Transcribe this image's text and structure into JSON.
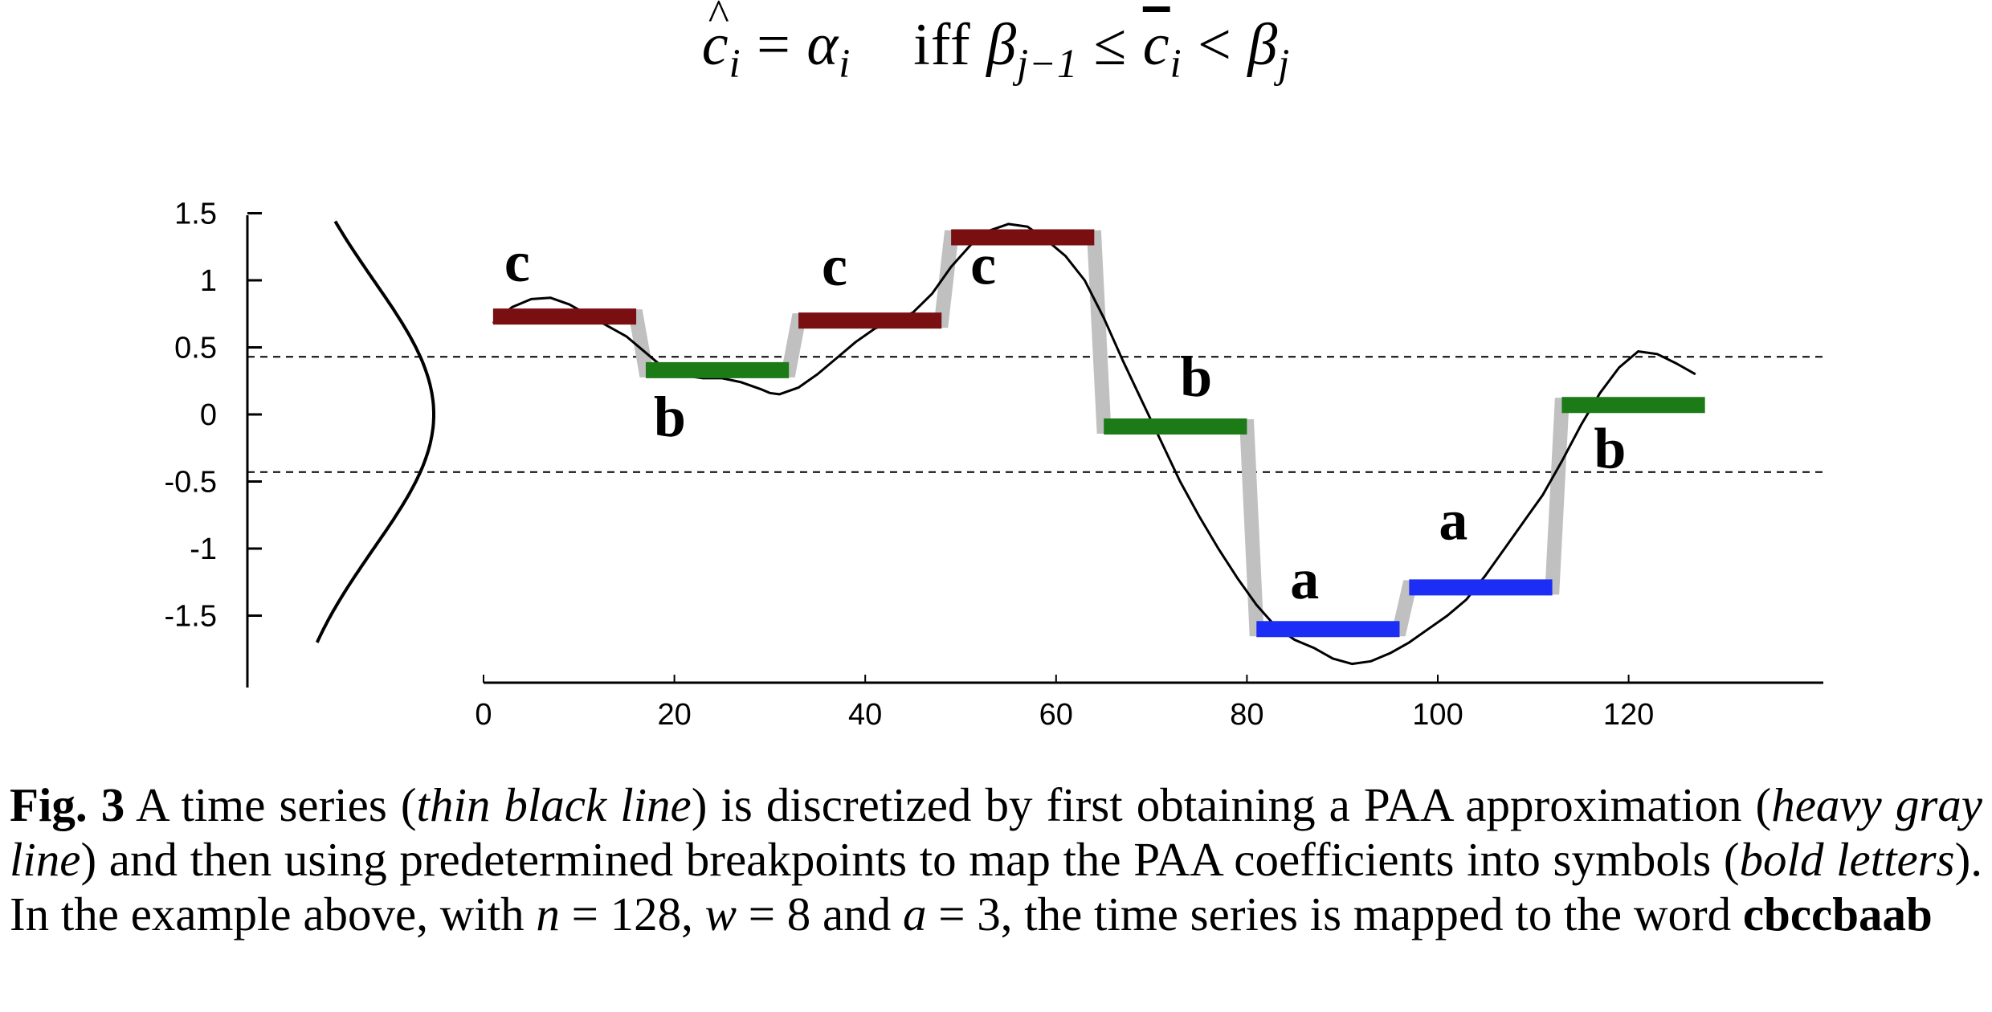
{
  "formula": {
    "c_hat": "c",
    "sub_i": "i",
    "eq": "=",
    "alpha": "α",
    "sub_i2": "i",
    "iff": "iff",
    "beta": "β",
    "sub_jm1": "j−1",
    "leq": "≤",
    "c_bar": "c",
    "sub_i3": "i",
    "lt": "<",
    "beta2": "β",
    "sub_j": "j"
  },
  "chart_data": {
    "type": "line",
    "xlim": [
      0,
      140
    ],
    "ylim": [
      -2,
      1.5
    ],
    "x_ticks": [
      0,
      20,
      40,
      60,
      80,
      100,
      120
    ],
    "y_ticks": [
      1.5,
      1,
      0.5,
      0,
      -0.5,
      -1,
      -1.5
    ],
    "x_tick_labels": [
      "0",
      "20",
      "40",
      "60",
      "80",
      "100",
      "120"
    ],
    "y_tick_labels": [
      "1.5",
      "1",
      "0.5",
      "0",
      "-0.5",
      "-1",
      "-1.5"
    ],
    "breakpoints": [
      0.43,
      -0.43
    ],
    "time_series": [
      [
        1,
        0.68
      ],
      [
        3,
        0.8
      ],
      [
        5,
        0.86
      ],
      [
        7,
        0.87
      ],
      [
        9,
        0.82
      ],
      [
        11,
        0.74
      ],
      [
        13,
        0.66
      ],
      [
        15,
        0.58
      ],
      [
        17,
        0.46
      ],
      [
        19,
        0.34
      ],
      [
        21,
        0.29
      ],
      [
        23,
        0.27
      ],
      [
        25,
        0.27
      ],
      [
        27,
        0.24
      ],
      [
        29,
        0.19
      ],
      [
        30,
        0.16
      ],
      [
        31,
        0.15
      ],
      [
        33,
        0.2
      ],
      [
        35,
        0.3
      ],
      [
        37,
        0.42
      ],
      [
        39,
        0.54
      ],
      [
        41,
        0.64
      ],
      [
        43,
        0.7
      ],
      [
        45,
        0.76
      ],
      [
        47,
        0.9
      ],
      [
        49,
        1.1
      ],
      [
        51,
        1.26
      ],
      [
        53,
        1.37
      ],
      [
        55,
        1.42
      ],
      [
        57,
        1.4
      ],
      [
        59,
        1.3
      ],
      [
        61,
        1.18
      ],
      [
        63,
        1.0
      ],
      [
        65,
        0.72
      ],
      [
        67,
        0.4
      ],
      [
        69,
        0.1
      ],
      [
        71,
        -0.2
      ],
      [
        73,
        -0.5
      ],
      [
        75,
        -0.76
      ],
      [
        77,
        -1.0
      ],
      [
        79,
        -1.22
      ],
      [
        81,
        -1.42
      ],
      [
        83,
        -1.58
      ],
      [
        85,
        -1.68
      ],
      [
        87,
        -1.74
      ],
      [
        89,
        -1.82
      ],
      [
        91,
        -1.86
      ],
      [
        93,
        -1.84
      ],
      [
        95,
        -1.78
      ],
      [
        97,
        -1.7
      ],
      [
        99,
        -1.6
      ],
      [
        101,
        -1.5
      ],
      [
        103,
        -1.38
      ],
      [
        105,
        -1.2
      ],
      [
        107,
        -1.0
      ],
      [
        109,
        -0.8
      ],
      [
        111,
        -0.6
      ],
      [
        113,
        -0.35
      ],
      [
        115,
        -0.08
      ],
      [
        117,
        0.16
      ],
      [
        119,
        0.35
      ],
      [
        121,
        0.47
      ],
      [
        123,
        0.45
      ],
      [
        125,
        0.38
      ],
      [
        127,
        0.3
      ]
    ],
    "paa": [
      {
        "symbol": "c",
        "x0": 1,
        "x1": 16,
        "y": 0.73
      },
      {
        "symbol": "b",
        "x0": 17,
        "x1": 32,
        "y": 0.33
      },
      {
        "symbol": "c",
        "x0": 33,
        "x1": 48,
        "y": 0.7
      },
      {
        "symbol": "c",
        "x0": 49,
        "x1": 64,
        "y": 1.32
      },
      {
        "symbol": "b",
        "x0": 65,
        "x1": 80,
        "y": -0.09
      },
      {
        "symbol": "a",
        "x0": 81,
        "x1": 96,
        "y": -1.6
      },
      {
        "symbol": "a",
        "x0": 97,
        "x1": 112,
        "y": -1.29
      },
      {
        "symbol": "b",
        "x0": 113,
        "x1": 128,
        "y": 0.07
      }
    ],
    "symbol_colors": {
      "a": "#1c2ef5",
      "b": "#1c7a17",
      "c": "#7a0f12"
    },
    "paa_color": "#c0c0c0"
  },
  "caption": {
    "fig_label": "Fig. 3",
    "t1": " A time series (",
    "i1": "thin black line",
    "t2": ") is discretized by first obtaining a PAA approximation (",
    "i2": "heavy gray line",
    "t3": ") and then using predetermined breakpoints to map the PAA coefficients into symbols (",
    "i3": "bold letters",
    "t4": "). In the example above, with ",
    "n": "n",
    "t5": " = 128, ",
    "w": "w",
    "t6": " = 8 and ",
    "a": "a",
    "t7": " = 3, the time series is mapped to the word ",
    "word": "cbccbaab"
  }
}
